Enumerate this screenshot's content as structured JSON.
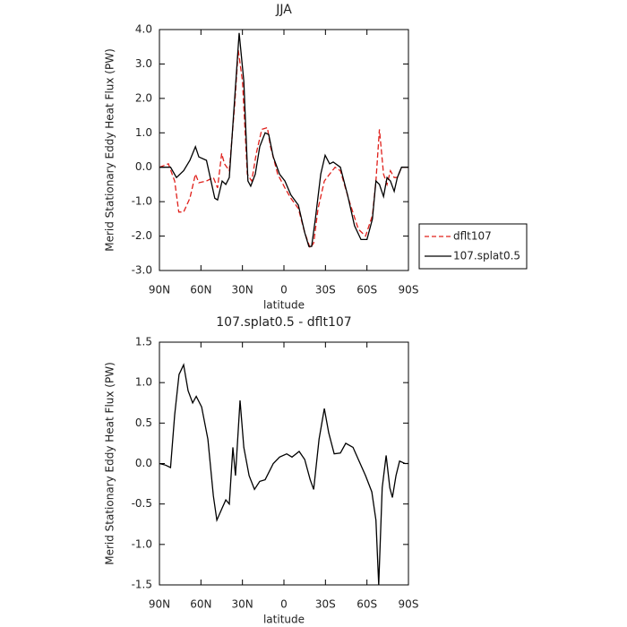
{
  "chart_data": [
    {
      "type": "line",
      "title": "JJA",
      "xlabel": "latitude",
      "ylabel": "Merid Stationary Eddy Heat Flux (PW)",
      "xlim": [
        90,
        -90
      ],
      "xticks": [
        {
          "value": 90,
          "label": "90N"
        },
        {
          "value": 60,
          "label": "60N"
        },
        {
          "value": 30,
          "label": "30N"
        },
        0,
        {
          "value": -30,
          "label": "30S"
        },
        {
          "value": -60,
          "label": "60S"
        },
        {
          "value": -90,
          "label": "90S"
        }
      ],
      "ylim": [
        -3,
        4
      ],
      "yticks": [
        {
          "value": -3,
          "label": "-3.0"
        },
        {
          "value": -2,
          "label": "-2.0"
        },
        {
          "value": -1,
          "label": "-1.0"
        },
        {
          "value": 0,
          "label": "0.0"
        },
        {
          "value": 1,
          "label": "1.0"
        },
        {
          "value": 2,
          "label": "2.0"
        },
        {
          "value": 3,
          "label": "3.0"
        },
        {
          "value": 4,
          "label": "4.0"
        }
      ],
      "legend": "right",
      "series": [
        {
          "name": "dflt107",
          "color": "#e0201b",
          "dash": true,
          "x": [
            90,
            83.5,
            79,
            76,
            72.5,
            68,
            64,
            61.5,
            56,
            51,
            48,
            45,
            43,
            39.5,
            35.6,
            33,
            30,
            26.5,
            23.3,
            20,
            16,
            12,
            9.7,
            4.5,
            -0.7,
            -5,
            -10.4,
            -15,
            -19,
            -21.5,
            -24.7,
            -29.2,
            -33,
            -37,
            -40.8,
            -47.3,
            -53.8,
            -59,
            -64,
            -66.5,
            -69,
            -72,
            -74.5,
            -77,
            -79.7,
            -82,
            -85,
            -90
          ],
          "values": [
            0,
            0.1,
            -0.4,
            -1.3,
            -1.3,
            -0.9,
            -0.2,
            -0.45,
            -0.4,
            -0.3,
            -0.6,
            0.4,
            0.1,
            -0.1,
            1.8,
            3.4,
            2.5,
            -0.2,
            -0.4,
            0.4,
            1.1,
            1.15,
            0.6,
            -0.2,
            -0.6,
            -0.9,
            -1.2,
            -1.9,
            -2.35,
            -2.2,
            -1.2,
            -0.4,
            -0.2,
            0,
            -0.1,
            -1.0,
            -1.8,
            -2.0,
            -1.4,
            -0.4,
            1.1,
            -0.2,
            -0.5,
            -0.1,
            -0.3,
            -0.3,
            0,
            0
          ]
        },
        {
          "name": "107.splat0.5",
          "color": "#000000",
          "dash": false,
          "x": [
            90,
            82,
            77.7,
            72.5,
            68,
            64,
            61.5,
            56,
            50,
            48,
            44.7,
            42,
            39.5,
            35.6,
            32.4,
            29,
            26,
            24,
            20.7,
            17.5,
            13.6,
            11,
            7.7,
            3.2,
            -0.7,
            -5,
            -10.4,
            -15,
            -18,
            -20,
            -22.7,
            -26.6,
            -29.8,
            -33,
            -35.6,
            -40.8,
            -46,
            -51,
            -55.7,
            -60,
            -64,
            -66.5,
            -69,
            -72,
            -74.5,
            -77,
            -79.7,
            -82,
            -85,
            -90
          ],
          "values": [
            0,
            0,
            -0.3,
            -0.1,
            0.2,
            0.6,
            0.3,
            0.2,
            -0.9,
            -0.95,
            -0.4,
            -0.5,
            -0.3,
            2.0,
            3.9,
            2.5,
            -0.4,
            -0.55,
            -0.2,
            0.6,
            1.0,
            0.95,
            0.3,
            -0.2,
            -0.4,
            -0.8,
            -1.1,
            -1.9,
            -2.3,
            -2.3,
            -1.5,
            -0.2,
            0.35,
            0.1,
            0.15,
            0,
            -0.8,
            -1.7,
            -2.1,
            -2.1,
            -1.5,
            -0.4,
            -0.5,
            -0.85,
            -0.3,
            -0.4,
            -0.7,
            -0.3,
            0,
            0
          ]
        }
      ]
    },
    {
      "type": "line",
      "title": "107.splat0.5 - dflt107",
      "xlabel": "latitude",
      "ylabel": "Merid Stationary Eddy Heat Flux (PW)",
      "xlim": [
        90,
        -90
      ],
      "xticks": [
        {
          "value": 90,
          "label": "90N"
        },
        {
          "value": 60,
          "label": "60N"
        },
        {
          "value": 30,
          "label": "30N"
        },
        0,
        {
          "value": -30,
          "label": "30S"
        },
        {
          "value": -60,
          "label": "60S"
        },
        {
          "value": -90,
          "label": "90S"
        }
      ],
      "ylim": [
        -1.5,
        1.5
      ],
      "yticks": [
        -1.5,
        {
          "value": -1,
          "label": "-1.0"
        },
        -0.5,
        {
          "value": 0,
          "label": "0.0"
        },
        0.5,
        {
          "value": 1,
          "label": "1.0"
        },
        1.5
      ],
      "series": [
        {
          "color": "#000000",
          "dash": false,
          "x": [
            90,
            85.5,
            82,
            79,
            75.8,
            72.5,
            69.3,
            66,
            63.4,
            59.5,
            55,
            51,
            48.5,
            44.7,
            42,
            39.5,
            36.9,
            35,
            31.7,
            29,
            25.2,
            21.3,
            17.5,
            13.6,
            7.7,
            3.2,
            -2,
            -5.8,
            -11,
            -15,
            -19,
            -21.5,
            -25.4,
            -29.2,
            -32.4,
            -36.3,
            -40.8,
            -44.7,
            -49.9,
            -53.8,
            -59,
            -63.5,
            -66.5,
            -68.5,
            -71,
            -73.9,
            -76.5,
            -78.4,
            -81,
            -83.6,
            -87.5,
            -90
          ],
          "values": [
            0,
            -0.02,
            -0.05,
            0.6,
            1.1,
            1.22,
            0.9,
            0.75,
            0.83,
            0.7,
            0.3,
            -0.4,
            -0.7,
            -0.55,
            -0.45,
            -0.5,
            0.2,
            -0.15,
            0.78,
            0.2,
            -0.15,
            -0.32,
            -0.22,
            -0.2,
            0,
            0.08,
            0.12,
            0.08,
            0.15,
            0.05,
            -0.2,
            -0.32,
            0.3,
            0.68,
            0.38,
            0.12,
            0.13,
            0.25,
            0.2,
            0.05,
            -0.15,
            -0.35,
            -0.7,
            -1.5,
            -0.3,
            0.1,
            -0.3,
            -0.42,
            -0.15,
            0.03,
            0,
            0
          ]
        }
      ]
    }
  ]
}
